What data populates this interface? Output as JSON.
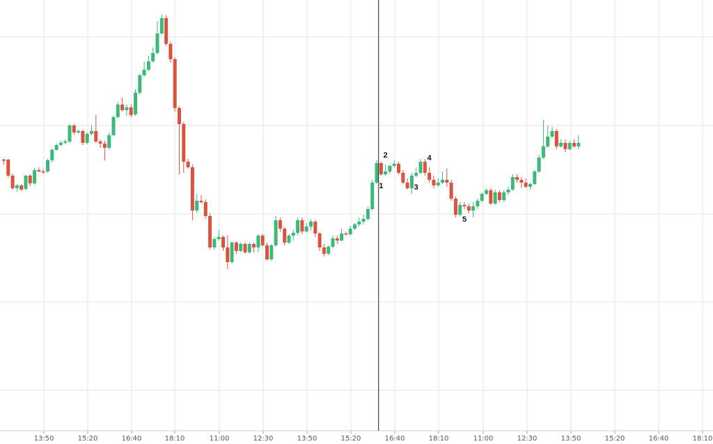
{
  "chart_data": {
    "type": "candlestick",
    "title": "",
    "xlabel": "",
    "ylabel": "",
    "grid": true,
    "colors": {
      "up": "#3cb878",
      "down": "#d9533f",
      "grid": "#e6e6e6",
      "divider": "#222222",
      "axis_text": "#555555"
    },
    "x_ticks": [
      "13:50",
      "15:20",
      "16:40",
      "18:10",
      "11:00",
      "12:30",
      "13:50",
      "15:20",
      "16:40",
      "18:10",
      "11:00",
      "12:30",
      "13:50",
      "15:20",
      "16:40",
      "18:10"
    ],
    "divider_after_candle": 85,
    "wave_labels": [
      {
        "text": "1",
        "candle": 86,
        "pos": "below"
      },
      {
        "text": "2",
        "candle": 87,
        "pos": "above"
      },
      {
        "text": "3",
        "candle": 94,
        "pos": "below"
      },
      {
        "text": "4",
        "candle": 97,
        "pos": "above"
      },
      {
        "text": "5",
        "candle": 105,
        "pos": "below"
      }
    ],
    "candles": [
      [
        229,
        229,
        228,
        236
      ],
      [
        229,
        252,
        228,
        254
      ],
      [
        252,
        270,
        249,
        272
      ],
      [
        270,
        266,
        264,
        275
      ],
      [
        266,
        272,
        264,
        274
      ],
      [
        271,
        252,
        251,
        273
      ],
      [
        252,
        263,
        250,
        267
      ],
      [
        263,
        244,
        241,
        265
      ],
      [
        244,
        246,
        240,
        247
      ],
      [
        246,
        246,
        243,
        249
      ],
      [
        246,
        230,
        228,
        248
      ],
      [
        230,
        215,
        213,
        233
      ],
      [
        215,
        208,
        206,
        216
      ],
      [
        208,
        205,
        202,
        210
      ],
      [
        205,
        203,
        200,
        207
      ],
      [
        203,
        180,
        178,
        205
      ],
      [
        180,
        190,
        178,
        193
      ],
      [
        190,
        188,
        186,
        192
      ],
      [
        188,
        205,
        186,
        208
      ],
      [
        205,
        192,
        190,
        207
      ],
      [
        192,
        188,
        180,
        194
      ],
      [
        188,
        203,
        165,
        205
      ],
      [
        203,
        206,
        200,
        212
      ],
      [
        206,
        212,
        202,
        230
      ],
      [
        212,
        194,
        190,
        214
      ],
      [
        194,
        168,
        166,
        195
      ],
      [
        168,
        150,
        146,
        170
      ],
      [
        150,
        158,
        140,
        160
      ],
      [
        158,
        154,
        150,
        166
      ],
      [
        154,
        165,
        150,
        168
      ],
      [
        164,
        133,
        128,
        166
      ],
      [
        133,
        108,
        106,
        136
      ],
      [
        108,
        100,
        88,
        110
      ],
      [
        100,
        88,
        80,
        102
      ],
      [
        88,
        76,
        68,
        90
      ],
      [
        76,
        48,
        30,
        78
      ],
      [
        48,
        26,
        20,
        50
      ],
      [
        26,
        63,
        22,
        66
      ],
      [
        63,
        85,
        60,
        90
      ],
      [
        85,
        155,
        82,
        160
      ],
      [
        155,
        178,
        152,
        250
      ],
      [
        178,
        232,
        175,
        248
      ],
      [
        232,
        240,
        228,
        242
      ],
      [
        240,
        302,
        236,
        316
      ],
      [
        302,
        288,
        278,
        305
      ],
      [
        288,
        290,
        280,
        292
      ],
      [
        290,
        310,
        286,
        314
      ],
      [
        310,
        355,
        306,
        358
      ],
      [
        355,
        343,
        340,
        358
      ],
      [
        343,
        340,
        330,
        345
      ],
      [
        340,
        355,
        338,
        360
      ],
      [
        355,
        376,
        338,
        386
      ],
      [
        376,
        348,
        346,
        378
      ],
      [
        348,
        360,
        346,
        364
      ],
      [
        360,
        350,
        348,
        362
      ],
      [
        350,
        362,
        348,
        364
      ],
      [
        362,
        350,
        348,
        364
      ],
      [
        350,
        355,
        348,
        362
      ],
      [
        355,
        338,
        336,
        362
      ],
      [
        338,
        352,
        336,
        354
      ],
      [
        352,
        372,
        348,
        374
      ],
      [
        372,
        352,
        350,
        374
      ],
      [
        352,
        316,
        310,
        354
      ],
      [
        316,
        328,
        312,
        332
      ],
      [
        328,
        348,
        326,
        352
      ],
      [
        348,
        338,
        336,
        350
      ],
      [
        338,
        334,
        330,
        345
      ],
      [
        334,
        316,
        312,
        338
      ],
      [
        316,
        332,
        312,
        336
      ],
      [
        332,
        325,
        320,
        334
      ],
      [
        325,
        318,
        315,
        330
      ],
      [
        318,
        335,
        316,
        340
      ],
      [
        335,
        355,
        333,
        360
      ],
      [
        355,
        364,
        350,
        368
      ],
      [
        364,
        354,
        352,
        366
      ],
      [
        354,
        342,
        338,
        356
      ],
      [
        342,
        345,
        338,
        350
      ],
      [
        345,
        335,
        328,
        346
      ],
      [
        335,
        336,
        332,
        338
      ],
      [
        336,
        328,
        324,
        338
      ],
      [
        328,
        322,
        320,
        330
      ],
      [
        322,
        318,
        312,
        325
      ],
      [
        318,
        314,
        308,
        322
      ],
      [
        314,
        300,
        296,
        316
      ],
      [
        300,
        262,
        258,
        302
      ],
      [
        262,
        234,
        230,
        264
      ],
      [
        234,
        250,
        232,
        252
      ],
      [
        250,
        246,
        236,
        252
      ],
      [
        246,
        238,
        236,
        250
      ],
      [
        238,
        235,
        230,
        240
      ],
      [
        235,
        248,
        232,
        250
      ],
      [
        248,
        262,
        244,
        264
      ],
      [
        262,
        270,
        256,
        272
      ],
      [
        270,
        252,
        248,
        278
      ],
      [
        252,
        248,
        240,
        254
      ],
      [
        248,
        232,
        228,
        250
      ],
      [
        232,
        248,
        228,
        252
      ],
      [
        248,
        258,
        240,
        262
      ],
      [
        258,
        266,
        252,
        270
      ],
      [
        266,
        262,
        256,
        268
      ],
      [
        262,
        258,
        246,
        264
      ],
      [
        258,
        262,
        242,
        268
      ],
      [
        262,
        285,
        258,
        288
      ],
      [
        285,
        308,
        282,
        312
      ],
      [
        308,
        294,
        290,
        310
      ],
      [
        294,
        296,
        290,
        300
      ],
      [
        296,
        302,
        292,
        306
      ],
      [
        302,
        296,
        290,
        312
      ],
      [
        296,
        288,
        285,
        300
      ],
      [
        288,
        278,
        276,
        290
      ],
      [
        278,
        273,
        270,
        280
      ],
      [
        273,
        292,
        270,
        294
      ],
      [
        292,
        276,
        272,
        294
      ],
      [
        276,
        287,
        273,
        290
      ],
      [
        287,
        276,
        273,
        290
      ],
      [
        276,
        272,
        268,
        280
      ],
      [
        272,
        254,
        250,
        274
      ],
      [
        254,
        258,
        250,
        262
      ],
      [
        258,
        262,
        254,
        270
      ],
      [
        262,
        268,
        256,
        270
      ],
      [
        268,
        264,
        262,
        272
      ],
      [
        264,
        246,
        244,
        266
      ],
      [
        246,
        226,
        222,
        248
      ],
      [
        226,
        210,
        172,
        228
      ],
      [
        210,
        196,
        180,
        212
      ],
      [
        196,
        188,
        182,
        198
      ],
      [
        188,
        210,
        185,
        214
      ],
      [
        210,
        205,
        200,
        212
      ],
      [
        205,
        214,
        200,
        218
      ],
      [
        214,
        205,
        202,
        216
      ],
      [
        205,
        210,
        200,
        212
      ],
      [
        210,
        205,
        194,
        214
      ]
    ]
  }
}
